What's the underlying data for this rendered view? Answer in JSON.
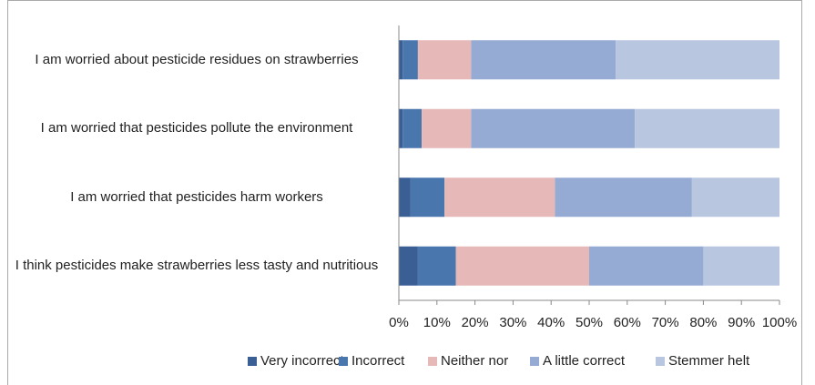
{
  "chart_data": {
    "type": "stacked_bar_horizontal",
    "categories": [
      "I am worried about pesticide residues on strawberries",
      "I am worried that pesticides pollute the environment",
      "I am worried that pesticides harm workers",
      "I think pesticides make strawberries less tasty and nutritious"
    ],
    "series": [
      {
        "name": "Very incorrect",
        "color": "#3a5f95",
        "values": [
          1,
          1,
          3,
          5
        ]
      },
      {
        "name": "Incorrect",
        "color": "#4a76ae",
        "values": [
          4,
          5,
          9,
          10
        ]
      },
      {
        "name": "Neither nor",
        "color": "#e6b9b8",
        "values": [
          14,
          13,
          29,
          35
        ]
      },
      {
        "name": "A little correct",
        "color": "#95abd3",
        "values": [
          38,
          43,
          36,
          30
        ]
      },
      {
        "name": "Stemmer helt",
        "color": "#b9c6e0",
        "values": [
          43,
          38,
          23,
          20
        ]
      }
    ],
    "xlim": [
      0,
      100
    ],
    "xticks": [
      {
        "value": 0,
        "label": "0%"
      },
      {
        "value": 10,
        "label": "10%"
      },
      {
        "value": 20,
        "label": "20%"
      },
      {
        "value": 30,
        "label": "30%"
      },
      {
        "value": 40,
        "label": "40%"
      },
      {
        "value": 50,
        "label": "50%"
      },
      {
        "value": 60,
        "label": "60%"
      },
      {
        "value": 70,
        "label": "70%"
      },
      {
        "value": 80,
        "label": "80%"
      },
      {
        "value": 90,
        "label": "90%"
      },
      {
        "value": 100,
        "label": "100%"
      }
    ],
    "legend": "bottom"
  }
}
